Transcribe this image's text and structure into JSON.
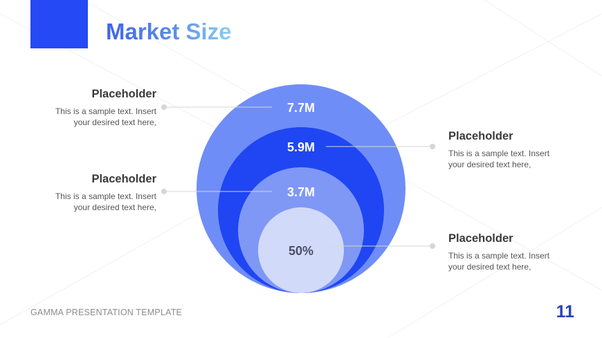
{
  "slide": {
    "title": "Market Size",
    "footer": "GAMMA PRESENTATION TEMPLATE",
    "page_number": "11"
  },
  "colors": {
    "accent": "#2449f5",
    "ring_outer": "#6f8df6",
    "ring_second": "#1f46f2",
    "ring_third": "#7f98f6",
    "ring_inner": "#d2daf9",
    "label_light": "#ffffff",
    "label_dark": "#4a4f66"
  },
  "diagram": {
    "rings": [
      {
        "label": "7.7M"
      },
      {
        "label": "5.9M"
      },
      {
        "label": "3.7M"
      },
      {
        "label": "50%"
      }
    ]
  },
  "callouts": [
    {
      "heading": "Placeholder",
      "line1": "This is a sample text. Insert",
      "line2": "your desired text here,"
    },
    {
      "heading": "Placeholder",
      "line1": "This is a sample text. Insert",
      "line2": "your desired text here,"
    },
    {
      "heading": "Placeholder",
      "line1": "This is a sample text. Insert",
      "line2": "your desired text here,"
    },
    {
      "heading": "Placeholder",
      "line1": "This is a sample text. Insert",
      "line2": "your desired text here,"
    }
  ]
}
